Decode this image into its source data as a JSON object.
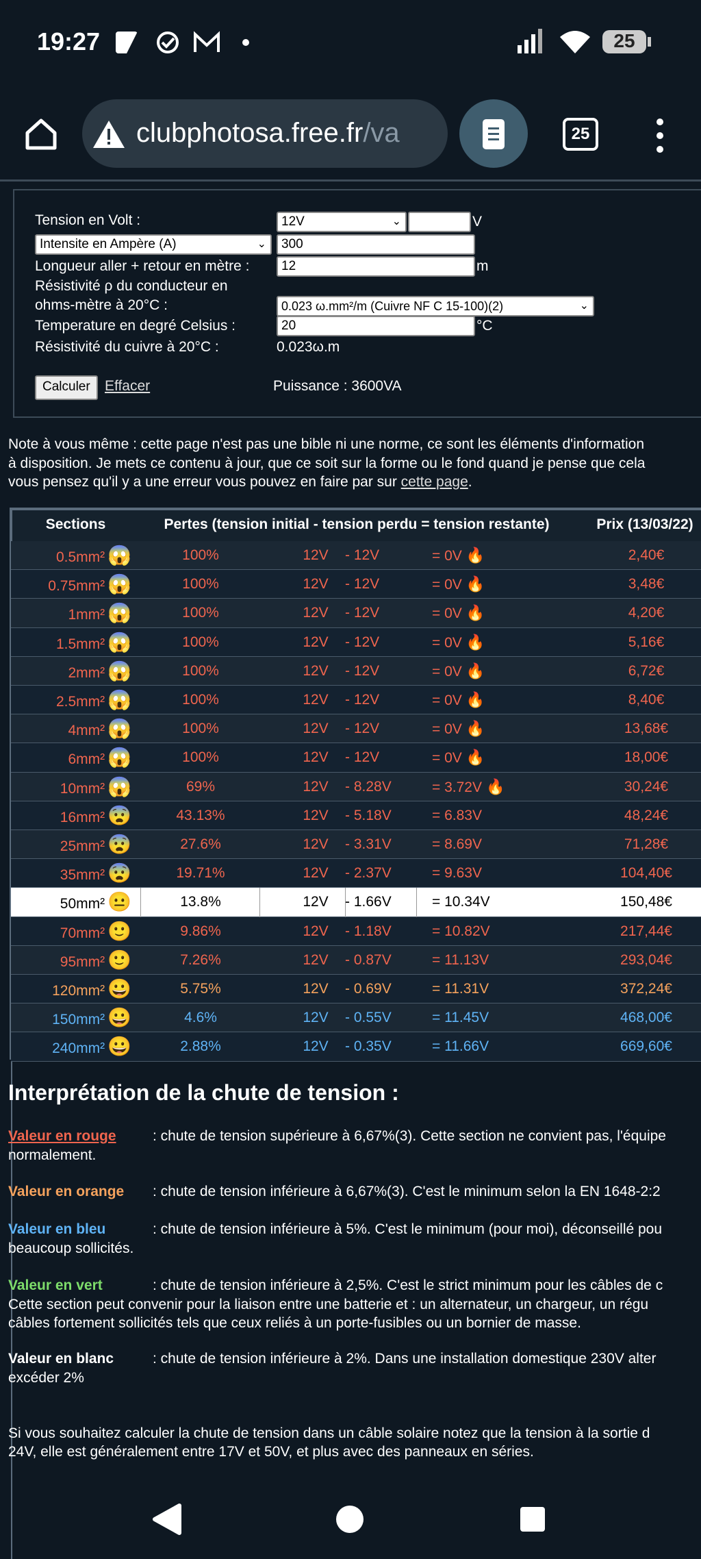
{
  "status_bar": {
    "time": "19:27",
    "battery": "25"
  },
  "browser": {
    "url_host": "clubphotosa.free.fr",
    "url_path": "/va",
    "tab_count": "25"
  },
  "form": {
    "voltage_label": "Tension en Volt :",
    "voltage_select": "12V",
    "voltage_unit": "V",
    "current_select": "Intensite en Ampère (A)",
    "current_value": "300",
    "length_label": "Longueur aller + retour en mètre :",
    "length_value": "12",
    "length_unit": "m",
    "resistivity_label_1": "Résistivité ρ du conducteur en",
    "resistivity_label_2": "ohms-mètre à 20°C :",
    "resistivity_select": "0.023 ω.mm²/m (Cuivre NF C 15-100)(2)",
    "temperature_label": "Temperature en degré Celsius :",
    "temperature_value": "20",
    "temperature_unit": "°C",
    "copper_label": "Résistivité du cuivre à 20°C :",
    "copper_value": "0.023ω.m",
    "calc_button": "Calculer",
    "clear_link": "Effacer",
    "power": "Puissance : 3600VA"
  },
  "note": {
    "lines": [
      "Note à vous même : cette page n'est pas une bible ni une norme, ce sont les éléments d'information",
      "à disposition. Je mets ce contenu à jour, que ce soit sur la forme ou le fond quand je pense que cela",
      "vous pensez qu'il y a une erreur vous pouvez en faire par sur "
    ],
    "link": "cette page",
    "end": "."
  },
  "table": {
    "headers": [
      "Sections",
      "Pertes (tension initial - tension perdu = tension restante)",
      "Prix (13/03/22)"
    ],
    "rows": [
      {
        "section": "0.5mm²",
        "emoji": "😱",
        "percent": "100%",
        "voltage": "12V",
        "drop": "- 12V",
        "remaining": "= 0V",
        "fire": "🔥",
        "price": "2,40€",
        "color": "#f0654e"
      },
      {
        "section": "0.75mm²",
        "emoji": "😱",
        "percent": "100%",
        "voltage": "12V",
        "drop": "- 12V",
        "remaining": "= 0V",
        "fire": "🔥",
        "price": "3,48€",
        "color": "#f0654e"
      },
      {
        "section": "1mm²",
        "emoji": "😱",
        "percent": "100%",
        "voltage": "12V",
        "drop": "- 12V",
        "remaining": "= 0V",
        "fire": "🔥",
        "price": "4,20€",
        "color": "#f0654e"
      },
      {
        "section": "1.5mm²",
        "emoji": "😱",
        "percent": "100%",
        "voltage": "12V",
        "drop": "- 12V",
        "remaining": "= 0V",
        "fire": "🔥",
        "price": "5,16€",
        "color": "#f0654e"
      },
      {
        "section": "2mm²",
        "emoji": "😱",
        "percent": "100%",
        "voltage": "12V",
        "drop": "- 12V",
        "remaining": "= 0V",
        "fire": "🔥",
        "price": "6,72€",
        "color": "#f0654e"
      },
      {
        "section": "2.5mm²",
        "emoji": "😱",
        "percent": "100%",
        "voltage": "12V",
        "drop": "- 12V",
        "remaining": "= 0V",
        "fire": "🔥",
        "price": "8,40€",
        "color": "#f0654e"
      },
      {
        "section": "4mm²",
        "emoji": "😱",
        "percent": "100%",
        "voltage": "12V",
        "drop": "- 12V",
        "remaining": "= 0V",
        "fire": "🔥",
        "price": "13,68€",
        "color": "#f0654e"
      },
      {
        "section": "6mm²",
        "emoji": "😱",
        "percent": "100%",
        "voltage": "12V",
        "drop": "- 12V",
        "remaining": "= 0V",
        "fire": "🔥",
        "price": "18,00€",
        "color": "#f0654e"
      },
      {
        "section": "10mm²",
        "emoji": "😱",
        "percent": "69%",
        "voltage": "12V",
        "drop": "- 8.28V",
        "remaining": "= 3.72V",
        "fire": "🔥",
        "price": "30,24€",
        "color": "#f0654e"
      },
      {
        "section": "16mm²",
        "emoji": "😨",
        "percent": "43.13%",
        "voltage": "12V",
        "drop": "- 5.18V",
        "remaining": "= 6.83V",
        "price": "48,24€",
        "color": "#f0654e"
      },
      {
        "section": "25mm²",
        "emoji": "😨",
        "percent": "27.6%",
        "voltage": "12V",
        "drop": "- 3.31V",
        "remaining": "= 8.69V",
        "price": "71,28€",
        "color": "#f0654e"
      },
      {
        "section": "35mm²",
        "emoji": "😨",
        "percent": "19.71%",
        "voltage": "12V",
        "drop": "- 2.37V",
        "remaining": "= 9.63V",
        "price": "104,40€",
        "color": "#f0654e"
      },
      {
        "section": "50mm²",
        "emoji": "😐",
        "percent": "13.8%",
        "voltage": "12V",
        "drop": "- 1.66V",
        "remaining": "= 10.34V",
        "price": "150,48€",
        "color": "#000000",
        "highlight": true
      },
      {
        "section": "70mm²",
        "emoji": "🙂",
        "percent": "9.86%",
        "voltage": "12V",
        "drop": "- 1.18V",
        "remaining": "= 10.82V",
        "price": "217,44€",
        "color": "#f0654e"
      },
      {
        "section": "95mm²",
        "emoji": "🙂",
        "percent": "7.26%",
        "voltage": "12V",
        "drop": "- 0.87V",
        "remaining": "= 11.13V",
        "price": "293,04€",
        "color": "#f0654e"
      },
      {
        "section": "120mm²",
        "emoji": "😀",
        "percent": "5.75%",
        "voltage": "12V",
        "drop": "- 0.69V",
        "remaining": "= 11.31V",
        "price": "372,24€",
        "color": "#f5a25d"
      },
      {
        "section": "150mm²",
        "emoji": "😀",
        "percent": "4.6%",
        "voltage": "12V",
        "drop": "- 0.55V",
        "remaining": "= 11.45V",
        "price": "468,00€",
        "color": "#5fb3f5"
      },
      {
        "section": "240mm²",
        "emoji": "😀",
        "percent": "2.88%",
        "voltage": "12V",
        "drop": "- 0.35V",
        "remaining": "= 11.66V",
        "price": "669,60€",
        "color": "#5fb3f5"
      }
    ]
  },
  "interpretation": {
    "title": "Interprétation de la chute de tension :",
    "items": [
      {
        "label": "Valeur en rouge",
        "color": "#f0654e",
        "lines": [
          ": chute de tension supérieure à 6,67%(3). Cette section ne convient pas, l'équipe",
          "normalement."
        ]
      },
      {
        "label": "Valeur en orange",
        "color": "#f5a25d",
        "lines": [
          ": chute de tension inférieure à 6,67%(3). C'est le minimum selon la EN 1648-2:2"
        ]
      },
      {
        "label": "Valeur en bleu",
        "color": "#5fb3f5",
        "lines": [
          ": chute de tension inférieure à 5%. C'est le minimum (pour moi), déconseillé pou",
          "beaucoup sollicités."
        ]
      },
      {
        "label": "Valeur en vert",
        "color": "#7ddc6a",
        "lines": [
          ": chute de tension inférieure à 2,5%. C'est le strict minimum pour les câbles de c",
          "Cette section peut convenir pour la liaison entre une batterie et : un alternateur, un chargeur, un régu",
          "câbles fortement sollicités tels que ceux reliés à un porte-fusibles ou un bornier de masse."
        ]
      },
      {
        "label": "Valeur en blanc",
        "color": "#ffffff",
        "lines": [
          ": chute de tension inférieure à 2%. Dans une installation domestique 230V alter",
          "excéder 2%"
        ]
      }
    ]
  },
  "footer_note": [
    "Si vous souhaitez calculer la chute de tension dans un câble solaire notez que la tension à la sortie d",
    "24V, elle est généralement entre 17V et 50V, et plus avec des panneaux en séries."
  ]
}
